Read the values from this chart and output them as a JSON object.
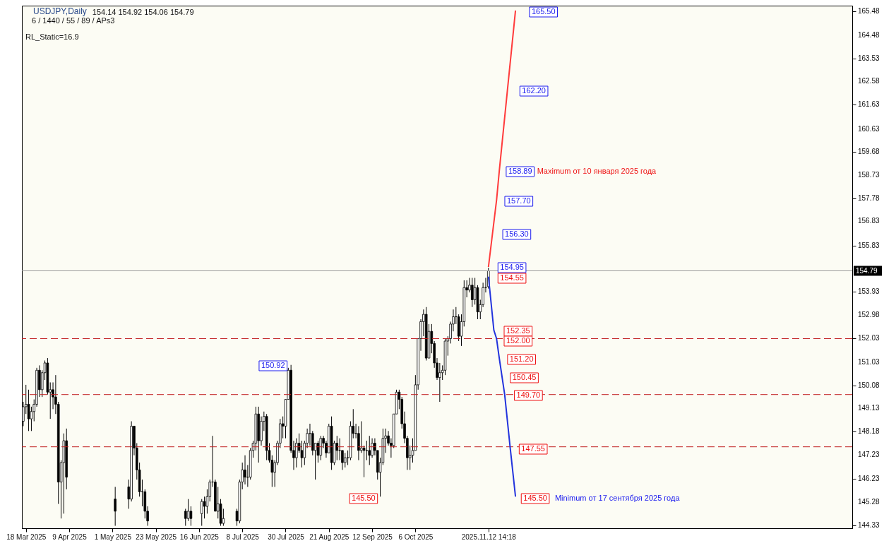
{
  "chart_data": {
    "type": "candlestick",
    "title": "USDJPY,Daily",
    "subtitle": "154.14 154.92 154.06 154.79",
    "categories": [
      null,
      "18 Mar 2025",
      null,
      null,
      null,
      null,
      null,
      null,
      null,
      null,
      null,
      null,
      null,
      null,
      null,
      null,
      null,
      "9 Apr 2025",
      null,
      null,
      null,
      null,
      null,
      null,
      null,
      null,
      null,
      null,
      null,
      null,
      null,
      null,
      null,
      "1 May 2025",
      null,
      null,
      null,
      null,
      null,
      null,
      null,
      null,
      null,
      null,
      null,
      null,
      null,
      null,
      null,
      "23 May 2025",
      null,
      null,
      null,
      null,
      null,
      null,
      null,
      null,
      null,
      null,
      null,
      null,
      null,
      null,
      null,
      "16 Jun 2025",
      null,
      null,
      null,
      null,
      null,
      null,
      null,
      null,
      null,
      null,
      null,
      null,
      null,
      null,
      null,
      "8 Jul 2025",
      null,
      null,
      null,
      null,
      null,
      null,
      null,
      null,
      null,
      null,
      null,
      null,
      null,
      null,
      null,
      "30 Jul 2025",
      null,
      null,
      null,
      null,
      null,
      null,
      null,
      null,
      null,
      null,
      null,
      null,
      null,
      null,
      null,
      "21 Aug 2025",
      null,
      null,
      null,
      null,
      null,
      null,
      null,
      null,
      null,
      null,
      null,
      null,
      null,
      null,
      null,
      "12 Sep 2025",
      null,
      null,
      null,
      null,
      null,
      null,
      null,
      null,
      null,
      null,
      null,
      null,
      null,
      null,
      null,
      "6 Oct 2025",
      null,
      null,
      null,
      null,
      null,
      null,
      null,
      null,
      null,
      null,
      null,
      null,
      null,
      null,
      null,
      null,
      null,
      null,
      null,
      null,
      null,
      null,
      null,
      null,
      null,
      null,
      "2025.11.12 14:18",
      null,
      null,
      null,
      null,
      null,
      null,
      null,
      null,
      null,
      null,
      null,
      null,
      null,
      null,
      null,
      null,
      null,
      null,
      null,
      null,
      null,
      null,
      null,
      null,
      null,
      null,
      null,
      null,
      null,
      null,
      null,
      null,
      null,
      null,
      null,
      null,
      null,
      null,
      null,
      null,
      null,
      null,
      null,
      null,
      null,
      null,
      null,
      null,
      null,
      null,
      null,
      null,
      null,
      null,
      null,
      null,
      null,
      null,
      null,
      null,
      null,
      null,
      null,
      null,
      null,
      null,
      null,
      null,
      null,
      null,
      null,
      null,
      null,
      null,
      null,
      null,
      null,
      null,
      null,
      null,
      null,
      null,
      null,
      null,
      null,
      null,
      null,
      null,
      null,
      null,
      null,
      null,
      null,
      null,
      null,
      null,
      null,
      null,
      null,
      null,
      null,
      null,
      null,
      null,
      null,
      null,
      null,
      null,
      null,
      null,
      null,
      null,
      null,
      null,
      null,
      null,
      null,
      null,
      null,
      null,
      null,
      null,
      null,
      null,
      null,
      null,
      null,
      null,
      null,
      null,
      null,
      null,
      null,
      null
    ],
    "ohlc": [
      [
        148.6,
        149.4,
        148.4,
        149.2
      ],
      [
        149.2,
        150.1,
        148.9,
        149.3
      ],
      [
        149.3,
        149.9,
        148.2,
        148.7
      ],
      [
        148.7,
        149.2,
        148.2,
        149.0
      ],
      [
        149.0,
        149.5,
        148.6,
        149.3
      ],
      [
        149.3,
        150.8,
        149.2,
        150.7
      ],
      [
        150.7,
        150.9,
        149.6,
        149.9
      ],
      [
        149.9,
        150.7,
        149.6,
        150.6
      ],
      [
        150.6,
        151.1,
        150.3,
        151.0
      ],
      [
        151.0,
        151.2,
        149.7,
        149.8
      ],
      [
        149.8,
        150.2,
        148.7,
        149.9
      ],
      [
        149.9,
        150.2,
        149.1,
        149.6
      ],
      [
        149.6,
        150.5,
        148.9,
        149.3
      ],
      [
        149.3,
        149.4,
        145.2,
        146.1
      ],
      [
        146.1,
        147.0,
        144.6,
        146.9
      ],
      [
        146.9,
        148.1,
        144.8,
        147.8
      ],
      [
        147.8,
        148.3,
        145.8,
        146.3
      ],
      null,
      null,
      null,
      null,
      null,
      null,
      null,
      null,
      null,
      null,
      null,
      null,
      null,
      null,
      null,
      null,
      null,
      [
        145.4,
        145.9,
        144.3,
        144.9
      ],
      null,
      null,
      null,
      null,
      [
        145.9,
        146.2,
        145.0,
        145.4
      ],
      [
        145.4,
        148.6,
        145.3,
        148.4
      ],
      [
        148.4,
        148.4,
        147.2,
        147.5
      ],
      [
        147.5,
        147.7,
        146.2,
        146.6
      ],
      [
        146.6,
        146.9,
        145.5,
        145.7
      ],
      [
        145.7,
        146.2,
        145.1,
        145.7
      ],
      [
        145.7,
        145.8,
        144.6,
        144.9
      ],
      [
        144.9,
        145.1,
        144.3,
        144.5
      ],
      null,
      null,
      null,
      null,
      null,
      null,
      null,
      null,
      null,
      null,
      null,
      null,
      null,
      [
        144.9,
        145.0,
        144.3,
        144.6
      ],
      [
        144.6,
        145.4,
        144.5,
        144.9
      ],
      [
        144.9,
        145.1,
        144.3,
        144.6
      ],
      null,
      null,
      null,
      [
        144.8,
        145.4,
        144.3,
        145.3
      ],
      [
        145.3,
        145.5,
        144.6,
        145.1
      ],
      [
        145.1,
        145.8,
        144.8,
        145.5
      ],
      [
        145.5,
        146.2,
        145.3,
        146.1
      ],
      [
        146.1,
        148.0,
        145.9,
        146.1
      ],
      [
        146.1,
        146.2,
        144.9,
        144.9
      ],
      [
        144.9,
        145.9,
        144.6,
        145.2
      ],
      [
        145.2,
        145.4,
        144.3,
        144.4
      ],
      [
        144.4,
        145.0,
        144.3,
        144.6
      ],
      null,
      null,
      null,
      null,
      [
        144.9,
        145.0,
        144.3,
        144.5
      ],
      [
        144.5,
        146.2,
        144.4,
        146.1
      ],
      [
        146.1,
        146.9,
        145.8,
        146.6
      ],
      [
        146.6,
        147.2,
        146.0,
        146.3
      ],
      [
        146.3,
        146.8,
        145.9,
        146.3
      ],
      [
        146.3,
        147.5,
        146.2,
        147.4
      ],
      [
        147.4,
        147.8,
        147.1,
        147.7
      ],
      [
        147.7,
        149.2,
        147.4,
        148.9
      ],
      [
        148.9,
        149.2,
        146.9,
        147.8
      ],
      [
        147.8,
        148.8,
        147.6,
        148.6
      ],
      [
        148.6,
        149.0,
        148.2,
        148.8
      ],
      [
        148.8,
        148.9,
        147.0,
        147.4
      ],
      [
        147.4,
        147.7,
        146.9,
        147.0
      ],
      [
        147.0,
        147.2,
        145.9,
        146.5
      ],
      [
        146.5,
        147.0,
        145.9,
        146.9
      ],
      [
        146.9,
        147.8,
        146.8,
        147.7
      ],
      [
        147.7,
        148.7,
        147.5,
        148.5
      ],
      [
        148.5,
        148.8,
        147.9,
        148.4
      ],
      [
        148.4,
        149.5,
        147.9,
        149.5
      ],
      [
        149.5,
        150.8,
        149.5,
        150.7
      ],
      [
        150.7,
        150.92,
        147.3,
        147.4
      ],
      [
        147.4,
        147.8,
        146.6,
        147.1
      ],
      [
        147.1,
        147.9,
        146.7,
        147.7
      ],
      [
        147.7,
        148.1,
        147.3,
        147.4
      ],
      [
        147.4,
        147.8,
        146.7,
        147.1
      ],
      [
        147.1,
        147.8,
        146.8,
        147.7
      ],
      [
        147.7,
        148.3,
        147.5,
        148.1
      ],
      [
        148.1,
        148.5,
        147.6,
        148.1
      ],
      [
        148.1,
        148.2,
        147.2,
        147.4
      ],
      [
        147.4,
        147.7,
        146.2,
        147.7
      ],
      [
        147.7,
        147.8,
        146.9,
        147.2
      ],
      [
        147.2,
        148.0,
        147.0,
        147.9
      ],
      [
        147.9,
        148.0,
        147.5,
        147.7
      ],
      [
        147.7,
        147.8,
        147.1,
        147.3
      ],
      [
        147.3,
        148.5,
        147.3,
        148.4
      ],
      [
        148.4,
        148.8,
        146.6,
        146.9
      ],
      [
        146.9,
        147.8,
        146.8,
        147.7
      ],
      [
        147.7,
        148.0,
        147.0,
        147.4
      ],
      [
        147.4,
        147.9,
        147.0,
        147.4
      ],
      [
        147.4,
        147.4,
        146.6,
        146.9
      ],
      [
        146.9,
        147.3,
        146.7,
        147.1
      ],
      [
        147.1,
        147.4,
        146.8,
        147.1
      ],
      [
        147.1,
        148.6,
        147.0,
        148.4
      ],
      [
        148.4,
        149.1,
        147.9,
        148.1
      ],
      [
        148.1,
        148.5,
        147.9,
        148.1
      ],
      [
        148.1,
        148.4,
        147.0,
        147.4
      ],
      [
        147.4,
        148.6,
        147.3,
        147.5
      ],
      [
        147.5,
        147.6,
        146.3,
        147.4
      ],
      [
        147.4,
        147.8,
        147.0,
        147.4
      ],
      [
        147.4,
        148.0,
        146.8,
        147.2
      ],
      [
        147.2,
        147.9,
        147.1,
        147.7
      ],
      [
        147.7,
        147.9,
        147.2,
        147.4
      ],
      [
        147.4,
        147.4,
        146.2,
        146.5
      ],
      [
        146.5,
        147.1,
        145.5,
        146.9
      ],
      [
        146.9,
        148.3,
        146.8,
        147.9
      ],
      [
        147.9,
        148.3,
        147.3,
        148.0
      ],
      [
        148.0,
        148.2,
        147.6,
        147.7
      ],
      [
        147.7,
        147.9,
        147.1,
        147.6
      ],
      [
        147.6,
        148.9,
        147.5,
        148.9
      ],
      [
        148.9,
        149.9,
        148.9,
        149.8
      ],
      [
        149.8,
        149.9,
        149.1,
        149.5
      ],
      [
        149.5,
        149.6,
        148.3,
        148.5
      ],
      [
        148.5,
        149.0,
        147.7,
        147.9
      ],
      [
        147.9,
        148.0,
        146.6,
        147.1
      ],
      [
        147.1,
        147.6,
        146.6,
        147.2
      ],
      [
        147.2,
        147.9,
        146.9,
        147.4
      ],
      [
        147.4,
        150.5,
        147.4,
        150.1
      ],
      [
        150.1,
        152.0,
        149.9,
        152.0
      ],
      [
        152.0,
        152.8,
        151.5,
        152.7
      ],
      [
        152.7,
        153.2,
        152.1,
        153.0
      ],
      [
        153.0,
        153.3,
        151.1,
        151.2
      ],
      [
        151.2,
        152.6,
        151.2,
        152.3
      ],
      [
        152.3,
        152.6,
        151.4,
        151.8
      ],
      [
        151.8,
        151.9,
        150.8,
        151.0
      ],
      [
        151.0,
        151.2,
        150.3,
        150.4
      ],
      [
        150.4,
        151.0,
        149.4,
        150.6
      ],
      [
        150.6,
        150.9,
        150.3,
        150.7
      ],
      [
        150.7,
        152.0,
        150.5,
        151.9
      ],
      [
        151.9,
        152.1,
        151.3,
        152.0
      ],
      [
        152.0,
        152.7,
        151.8,
        152.6
      ],
      [
        152.6,
        153.2,
        152.3,
        152.9
      ],
      [
        152.9,
        153.3,
        152.6,
        152.9
      ],
      [
        152.9,
        153.0,
        151.9,
        152.1
      ],
      [
        152.1,
        153.0,
        151.7,
        152.7
      ],
      [
        152.7,
        154.4,
        152.5,
        154.1
      ],
      [
        154.1,
        154.4,
        153.7,
        154.0
      ],
      [
        154.0,
        154.5,
        153.9,
        154.2
      ],
      [
        154.2,
        154.5,
        153.3,
        153.6
      ],
      [
        153.6,
        154.5,
        153.4,
        154.1
      ],
      [
        154.1,
        154.2,
        152.8,
        153.1
      ],
      [
        153.1,
        153.6,
        152.8,
        153.4
      ],
      [
        153.4,
        154.3,
        153.3,
        154.1
      ],
      [
        154.1,
        154.5,
        153.9,
        154.1
      ],
      [
        154.14,
        154.92,
        154.06,
        154.79
      ],
      null,
      null,
      null,
      null,
      null,
      null,
      null,
      null,
      null,
      null,
      null,
      null,
      null,
      null,
      null,
      null,
      null,
      null,
      null,
      null,
      null,
      null,
      null,
      null,
      null,
      null,
      null,
      null,
      null,
      null,
      null,
      null,
      null,
      null,
      null,
      null,
      null,
      null,
      null,
      null,
      null,
      null,
      null,
      null,
      null,
      null,
      null,
      null,
      null,
      null,
      null,
      null,
      null,
      null,
      null,
      null,
      null,
      null,
      null,
      null,
      null,
      null,
      null,
      null,
      null,
      null,
      null,
      null,
      null,
      null,
      null,
      null,
      null,
      null,
      null,
      null,
      null,
      null,
      null,
      null,
      null,
      null,
      null,
      null,
      null,
      null,
      null,
      null,
      null,
      null,
      null,
      null,
      null,
      null,
      null,
      null,
      null,
      null,
      null,
      null,
      null,
      null,
      null,
      null,
      null,
      null,
      null,
      null,
      null,
      null,
      null,
      null,
      null,
      null,
      null,
      null,
      null,
      null,
      null,
      null,
      null,
      null,
      null,
      null,
      null,
      null,
      null,
      null,
      null,
      null,
      null,
      null,
      null,
      null
    ],
    "ylim": [
      144.2,
      165.7
    ],
    "yticks": [
      144.33,
      145.28,
      146.23,
      147.23,
      148.18,
      149.13,
      150.08,
      151.03,
      152.03,
      152.98,
      153.93,
      {
        "value": 154.88,
        "label": null
      },
      155.83,
      156.83,
      157.78,
      158.73,
      159.68,
      160.63,
      161.63,
      162.58,
      163.53,
      164.48,
      165.48
    ],
    "ref_lines": [
      {
        "axis": "y",
        "value": 154.79,
        "label": "154.79",
        "color": "#9a9a9a",
        "line_style": "solid"
      },
      {
        "axis": "y",
        "value": 152.0,
        "color": "#c02020",
        "line_style": "dashed"
      },
      {
        "axis": "y",
        "value": 149.7,
        "color": "#c02020",
        "line_style": "dashed"
      },
      {
        "axis": "y",
        "value": 147.55,
        "color": "#c02020",
        "line_style": "dashed"
      }
    ],
    "annotations": [
      "6 / 1440 / 55 / 89 / APs3",
      "RL_Static=16.9",
      "165.50",
      "162.20",
      "158.89",
      "Maximum от 10 января 2025 года",
      "157.70",
      "156.30",
      "154.95",
      "154.55",
      "152.35",
      "152.00",
      "151.20",
      "150.45",
      "149.70",
      "147.55",
      "145.50",
      "Minimum от 17 сентября 2025 года",
      "150.92",
      "145.50"
    ],
    "series": [
      {
        "type": "line",
        "color": "#ff3b3b",
        "values": [
          null,
          null,
          null,
          null,
          null,
          null,
          null,
          null,
          null,
          null,
          null,
          null,
          null,
          null,
          null,
          null,
          null,
          null,
          null,
          null,
          null,
          null,
          null,
          null,
          null,
          null,
          null,
          null,
          null,
          null,
          null,
          null,
          null,
          null,
          null,
          null,
          null,
          null,
          null,
          null,
          null,
          null,
          null,
          null,
          null,
          null,
          null,
          null,
          null,
          null,
          null,
          null,
          null,
          null,
          null,
          null,
          null,
          null,
          null,
          null,
          null,
          null,
          null,
          null,
          null,
          null,
          null,
          null,
          null,
          null,
          null,
          null,
          null,
          null,
          null,
          null,
          null,
          null,
          null,
          null,
          null,
          null,
          null,
          null,
          null,
          null,
          null,
          null,
          null,
          null,
          null,
          null,
          null,
          null,
          null,
          null,
          null,
          null,
          null,
          null,
          null,
          null,
          null,
          null,
          null,
          null,
          null,
          null,
          null,
          null,
          null,
          null,
          null,
          null,
          null,
          null,
          null,
          null,
          null,
          null,
          null,
          null,
          null,
          null,
          null,
          null,
          null,
          null,
          null,
          null,
          null,
          null,
          null,
          null,
          null,
          null,
          null,
          null,
          null,
          null,
          null,
          null,
          null,
          null,
          null,
          null,
          null,
          null,
          null,
          null,
          null,
          null,
          null,
          null,
          null,
          null,
          null,
          null,
          null,
          null,
          null,
          null,
          null,
          null,
          null,
          null,
          null,
          null,
          null,
          null,
          null,
          null,
          154.95,
          null,
          null,
          157.7,
          158.89,
          null,
          null,
          162.2,
          null,
          null,
          165.5,
          null,
          null,
          null,
          null,
          null,
          null,
          null,
          null,
          null,
          null,
          null,
          null,
          null,
          null,
          null,
          null,
          null,
          null,
          null,
          null,
          null,
          null,
          null,
          null,
          null,
          null,
          null,
          null,
          null,
          null,
          null,
          null,
          null,
          null,
          null,
          null,
          null,
          null,
          null,
          null,
          null,
          null,
          null,
          null,
          null,
          null,
          null,
          null,
          null,
          null,
          null,
          null,
          null,
          null,
          null,
          null,
          null,
          null,
          null,
          null,
          null,
          null,
          null,
          null,
          null,
          null,
          null,
          null,
          null,
          null,
          null,
          null,
          null,
          null,
          null,
          null,
          null,
          null,
          null,
          null,
          null,
          null,
          null,
          null,
          null,
          null,
          null,
          null,
          null,
          null,
          null,
          null,
          null,
          null,
          null,
          null,
          null,
          null,
          null,
          null,
          null,
          null,
          null,
          null,
          null,
          null,
          null,
          null,
          null,
          null,
          null,
          null,
          null,
          null,
          null,
          null,
          null,
          null,
          null,
          null,
          null,
          null,
          null,
          null
        ]
      },
      {
        "type": "line",
        "color": "#2233dd",
        "values": [
          null,
          null,
          null,
          null,
          null,
          null,
          null,
          null,
          null,
          null,
          null,
          null,
          null,
          null,
          null,
          null,
          null,
          null,
          null,
          null,
          null,
          null,
          null,
          null,
          null,
          null,
          null,
          null,
          null,
          null,
          null,
          null,
          null,
          null,
          null,
          null,
          null,
          null,
          null,
          null,
          null,
          null,
          null,
          null,
          null,
          null,
          null,
          null,
          null,
          null,
          null,
          null,
          null,
          null,
          null,
          null,
          null,
          null,
          null,
          null,
          null,
          null,
          null,
          null,
          null,
          null,
          null,
          null,
          null,
          null,
          null,
          null,
          null,
          null,
          null,
          null,
          null,
          null,
          null,
          null,
          null,
          null,
          null,
          null,
          null,
          null,
          null,
          null,
          null,
          null,
          null,
          null,
          null,
          null,
          null,
          null,
          null,
          null,
          null,
          null,
          null,
          null,
          null,
          null,
          null,
          null,
          null,
          null,
          null,
          null,
          null,
          null,
          null,
          null,
          null,
          null,
          null,
          null,
          null,
          null,
          null,
          null,
          null,
          null,
          null,
          null,
          null,
          null,
          null,
          null,
          null,
          null,
          null,
          null,
          null,
          null,
          null,
          null,
          null,
          null,
          null,
          null,
          null,
          null,
          null,
          null,
          null,
          null,
          null,
          null,
          null,
          null,
          null,
          null,
          null,
          null,
          null,
          null,
          null,
          null,
          null,
          null,
          null,
          null,
          null,
          null,
          null,
          null,
          null,
          null,
          null,
          null,
          154.55,
          null,
          152.35,
          152.0,
          151.2,
          150.45,
          149.7,
          null,
          147.55,
          null,
          145.5,
          null,
          null,
          null,
          null,
          null,
          null,
          null,
          null,
          null,
          null,
          null,
          null,
          null,
          null,
          null,
          null,
          null,
          null,
          null,
          null,
          null,
          null,
          null,
          null,
          null,
          null,
          null,
          null,
          null,
          null,
          null,
          null,
          null,
          null,
          null,
          null,
          null,
          null,
          null,
          null,
          null,
          null,
          null,
          null,
          null,
          null,
          null,
          null,
          null,
          null,
          null,
          null,
          null,
          null,
          null,
          null,
          null,
          null,
          null,
          null,
          null,
          null,
          null,
          null,
          null,
          null,
          null,
          null,
          null,
          null,
          null,
          null,
          null,
          null,
          null,
          null,
          null,
          null,
          null,
          null,
          null,
          null,
          null,
          null,
          null,
          null,
          null,
          null,
          null,
          null,
          null,
          null,
          null,
          null,
          null,
          null,
          null,
          null,
          null,
          null,
          null,
          null,
          null,
          null,
          null,
          null,
          null,
          null,
          null,
          null,
          null,
          null,
          null,
          null,
          null,
          null,
          null,
          null,
          null,
          null,
          null,
          null,
          null,
          null
        ]
      }
    ],
    "marker": "none"
  }
}
